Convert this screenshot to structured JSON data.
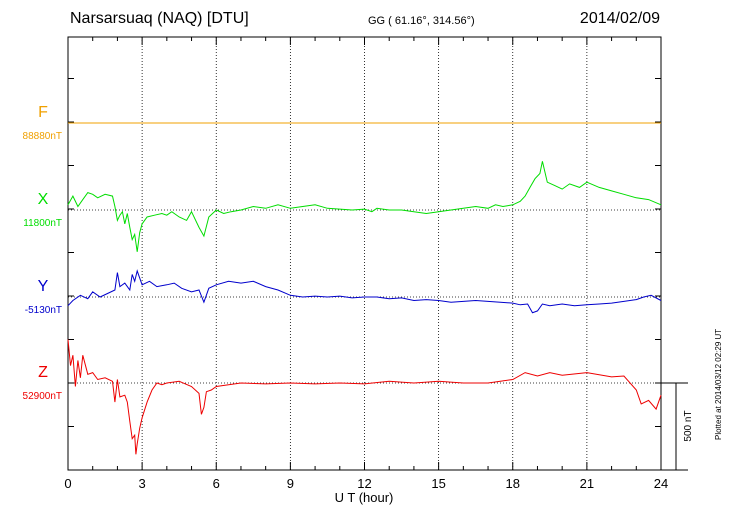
{
  "header": {
    "station": "Narsarsuaq (NAQ)  [DTU]",
    "coords": "GG ( 61.16°, 314.56°)",
    "date": "2014/02/09"
  },
  "footnote": "Plotted at 2014/03/12 02:29 UT",
  "colors": {
    "F": "#f0a000",
    "X": "#00dd00",
    "Y": "#0000cc",
    "Z": "#ee0000",
    "grid": "#000000"
  },
  "chart_data": {
    "type": "line",
    "xlabel": "U T (hour)",
    "xlim": [
      0,
      24
    ],
    "xticks": [
      "0",
      "3",
      "6",
      "9",
      "12",
      "15",
      "18",
      "21",
      "24"
    ],
    "scale_bar": {
      "label": "500 nT",
      "value": 500
    },
    "series": [
      {
        "name": "F",
        "baseline_label": "88880nT",
        "baseline": 88880,
        "x": [
          0,
          24
        ],
        "y": [
          88880,
          88880
        ]
      },
      {
        "name": "X",
        "baseline_label": "11800nT",
        "baseline": 11800,
        "x": [
          0,
          0.2,
          0.4,
          0.6,
          0.8,
          1.0,
          1.2,
          1.5,
          1.8,
          1.9,
          2.0,
          2.1,
          2.2,
          2.3,
          2.4,
          2.5,
          2.6,
          2.7,
          2.8,
          2.9,
          3.0,
          3.2,
          3.5,
          3.8,
          4.0,
          4.2,
          4.5,
          4.8,
          5.0,
          5.3,
          5.5,
          5.7,
          6.0,
          6.3,
          6.6,
          7.0,
          7.5,
          8.0,
          8.5,
          9.0,
          9.5,
          10,
          10.5,
          11,
          11.5,
          12,
          12.3,
          12.5,
          13,
          13.5,
          14,
          14.5,
          15,
          15.5,
          16,
          16.5,
          17,
          17.3,
          17.6,
          18,
          18.3,
          18.5,
          18.7,
          18.9,
          19.1,
          19.2,
          19.4,
          19.7,
          20,
          20.3,
          20.7,
          21,
          21.5,
          22,
          22.5,
          23,
          23.5,
          24
        ],
        "y": [
          11830,
          11880,
          11820,
          11860,
          11900,
          11890,
          11870,
          11890,
          11880,
          11820,
          11740,
          11770,
          11790,
          11720,
          11780,
          11700,
          11630,
          11660,
          11560,
          11670,
          11720,
          11760,
          11770,
          11780,
          11770,
          11790,
          11760,
          11740,
          11790,
          11700,
          11650,
          11760,
          11800,
          11780,
          11790,
          11800,
          11820,
          11810,
          11830,
          11810,
          11820,
          11830,
          11810,
          11805,
          11800,
          11805,
          11790,
          11810,
          11800,
          11800,
          11790,
          11780,
          11790,
          11800,
          11810,
          11820,
          11810,
          11830,
          11820,
          11830,
          11850,
          11880,
          11930,
          11980,
          12010,
          12080,
          11960,
          11940,
          11920,
          11950,
          11930,
          11960,
          11930,
          11910,
          11890,
          11870,
          11860,
          11830
        ]
      },
      {
        "name": "Y",
        "baseline_label": "-5130nT",
        "baseline": -5130,
        "x": [
          0,
          0.2,
          0.5,
          0.8,
          1.0,
          1.3,
          1.6,
          1.9,
          2.0,
          2.1,
          2.3,
          2.5,
          2.6,
          2.7,
          2.8,
          3.0,
          3.3,
          3.6,
          4.0,
          4.3,
          4.6,
          5.0,
          5.3,
          5.5,
          5.7,
          6.0,
          6.5,
          7.0,
          7.5,
          8.0,
          8.5,
          9.0,
          9.5,
          10,
          10.5,
          11,
          11.5,
          12,
          12.5,
          13,
          13.5,
          14,
          14.5,
          15,
          15.5,
          16,
          16.5,
          17,
          17.5,
          18,
          18.3,
          18.6,
          18.8,
          19.0,
          19.2,
          19.5,
          20,
          20.5,
          21,
          21.5,
          22,
          22.5,
          23,
          23.3,
          23.6,
          24
        ],
        "y": [
          -5180,
          -5150,
          -5120,
          -5140,
          -5100,
          -5130,
          -5110,
          -5090,
          -4990,
          -5070,
          -5050,
          -5090,
          -5000,
          -5040,
          -4980,
          -5060,
          -5040,
          -5070,
          -5060,
          -5050,
          -5080,
          -5100,
          -5090,
          -5160,
          -5080,
          -5060,
          -5040,
          -5050,
          -5040,
          -5070,
          -5090,
          -5120,
          -5130,
          -5125,
          -5130,
          -5125,
          -5135,
          -5130,
          -5130,
          -5140,
          -5135,
          -5150,
          -5145,
          -5150,
          -5160,
          -5155,
          -5150,
          -5155,
          -5160,
          -5165,
          -5175,
          -5170,
          -5220,
          -5210,
          -5170,
          -5180,
          -5170,
          -5180,
          -5175,
          -5170,
          -5165,
          -5155,
          -5145,
          -5130,
          -5120,
          -5150
        ]
      },
      {
        "name": "Z",
        "baseline_label": "52900nT",
        "baseline": 52900,
        "x": [
          0,
          0.1,
          0.2,
          0.3,
          0.4,
          0.5,
          0.6,
          0.8,
          1.0,
          1.2,
          1.5,
          1.8,
          1.9,
          2.0,
          2.1,
          2.3,
          2.4,
          2.5,
          2.6,
          2.7,
          2.75,
          2.8,
          2.9,
          3.0,
          3.2,
          3.4,
          3.6,
          3.8,
          4.0,
          4.5,
          5.0,
          5.3,
          5.4,
          5.5,
          5.6,
          5.8,
          6.0,
          6.5,
          7.0,
          8.0,
          9.0,
          10,
          11,
          12,
          13,
          14,
          15,
          16,
          17,
          18,
          18.5,
          19,
          19.5,
          20,
          21,
          22,
          22.5,
          23,
          23.2,
          23.5,
          23.8,
          24
        ],
        "y": [
          53150,
          53000,
          53060,
          52880,
          53030,
          52930,
          53060,
          52950,
          52960,
          52920,
          52930,
          52910,
          52790,
          52920,
          52820,
          52830,
          52790,
          52680,
          52580,
          52600,
          52490,
          52550,
          52640,
          52700,
          52790,
          52860,
          52900,
          52890,
          52900,
          52910,
          52880,
          52840,
          52720,
          52760,
          52850,
          52860,
          52880,
          52890,
          52900,
          52895,
          52900,
          52895,
          52900,
          52895,
          52910,
          52900,
          52910,
          52900,
          52900,
          52920,
          52960,
          52940,
          52960,
          52945,
          52960,
          52935,
          52940,
          52860,
          52780,
          52800,
          52750,
          52830
        ]
      }
    ]
  }
}
